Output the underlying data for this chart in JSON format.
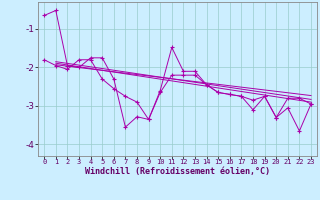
{
  "xlabel": "Windchill (Refroidissement éolien,°C)",
  "bg_color": "#cceeff",
  "line_color": "#aa00aa",
  "grid_color": "#99cccc",
  "xlim": [
    -0.5,
    23.5
  ],
  "ylim": [
    -4.3,
    -0.3
  ],
  "yticks": [
    -4,
    -3,
    -2,
    -1
  ],
  "xticks": [
    0,
    1,
    2,
    3,
    4,
    5,
    6,
    7,
    8,
    9,
    10,
    11,
    12,
    13,
    14,
    15,
    16,
    17,
    18,
    19,
    20,
    21,
    22,
    23
  ],
  "series1_x": [
    0,
    1,
    2,
    3,
    4,
    5,
    6,
    7,
    8,
    9,
    10,
    11,
    12,
    13,
    14,
    15,
    16,
    17,
    18,
    19,
    20,
    21,
    22,
    23
  ],
  "series1_y": [
    -0.65,
    -0.52,
    -1.95,
    -2.0,
    -1.75,
    -1.75,
    -2.3,
    -3.55,
    -3.28,
    -3.35,
    -2.6,
    -1.48,
    -2.1,
    -2.1,
    -2.45,
    -2.65,
    -2.7,
    -2.75,
    -3.1,
    -2.75,
    -3.3,
    -3.05,
    -3.65,
    -2.95
  ],
  "series2_x": [
    0,
    1,
    2,
    3,
    4,
    5,
    6,
    7,
    8,
    9,
    10,
    11,
    12,
    13,
    14,
    15,
    16,
    17,
    18,
    19,
    20,
    21,
    22,
    23
  ],
  "series2_y": [
    -1.8,
    -1.95,
    -2.05,
    -1.8,
    -1.8,
    -2.3,
    -2.55,
    -2.75,
    -2.9,
    -3.35,
    -2.65,
    -2.2,
    -2.2,
    -2.2,
    -2.45,
    -2.65,
    -2.7,
    -2.75,
    -2.85,
    -2.75,
    -3.3,
    -2.8,
    -2.8,
    -2.95
  ],
  "trend1_x": [
    1,
    23
  ],
  "trend1_y": [
    -1.85,
    -2.83
  ],
  "trend2_x": [
    1,
    23
  ],
  "trend2_y": [
    -1.93,
    -2.73
  ],
  "trend3_x": [
    1,
    23
  ],
  "trend3_y": [
    -1.89,
    -2.9
  ],
  "xlabel_fontsize": 6.0,
  "ytick_fontsize": 6.5,
  "xtick_fontsize": 5.0
}
